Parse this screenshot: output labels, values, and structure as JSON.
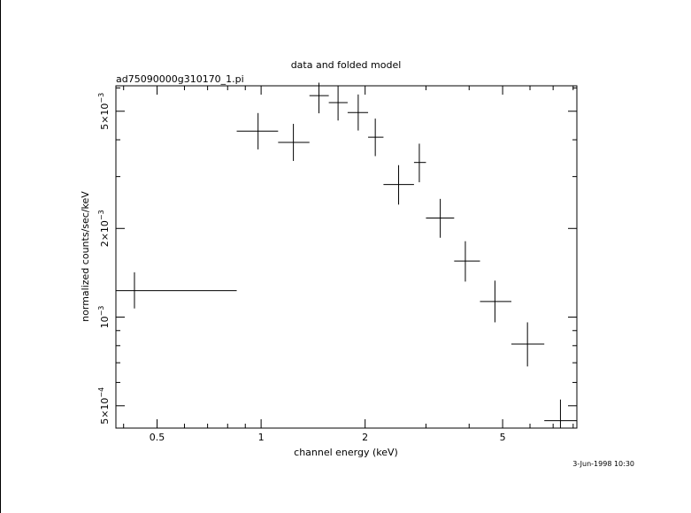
{
  "chart_data": {
    "type": "scatter",
    "title": "data and folded model",
    "subtitle": "ad75090000g310170_1.pi",
    "xlabel": "channel energy (keV)",
    "ylabel": "normalized counts/sec/keV",
    "x_scale": "log",
    "y_scale": "log",
    "xlim": [
      0.38,
      8.2
    ],
    "ylim": [
      0.00042,
      0.0061
    ],
    "grid": false,
    "x_ticks": [
      {
        "value": 0.5,
        "label": "0.5"
      },
      {
        "value": 1,
        "label": "1"
      },
      {
        "value": 2,
        "label": "2"
      },
      {
        "value": 5,
        "label": "5"
      }
    ],
    "y_ticks": [
      {
        "value": 0.0005,
        "mantissa": "5×10",
        "exp": "−4"
      },
      {
        "value": 0.001,
        "mantissa": "10",
        "exp": "−3"
      },
      {
        "value": 0.002,
        "mantissa": "2×10",
        "exp": "−3"
      },
      {
        "value": 0.005,
        "mantissa": "5×10",
        "exp": "−3"
      }
    ],
    "series": [
      {
        "marker": "cross-error-bars",
        "points": [
          {
            "x": 0.43,
            "xlo": 0.38,
            "xhi": 0.85,
            "y": 0.00123,
            "ylo": 0.00107,
            "yhi": 0.00142
          },
          {
            "x": 0.98,
            "xlo": 0.85,
            "xhi": 1.12,
            "y": 0.00428,
            "ylo": 0.00371,
            "yhi": 0.00493
          },
          {
            "x": 1.24,
            "xlo": 1.12,
            "xhi": 1.38,
            "y": 0.00392,
            "ylo": 0.00339,
            "yhi": 0.00453
          },
          {
            "x": 1.47,
            "xlo": 1.38,
            "xhi": 1.57,
            "y": 0.00565,
            "ylo": 0.00492,
            "yhi": 0.00625
          },
          {
            "x": 1.67,
            "xlo": 1.57,
            "xhi": 1.78,
            "y": 0.00535,
            "ylo": 0.00465,
            "yhi": 0.0061
          },
          {
            "x": 1.91,
            "xlo": 1.78,
            "xhi": 2.04,
            "y": 0.00495,
            "ylo": 0.0043,
            "yhi": 0.0057
          },
          {
            "x": 2.14,
            "xlo": 2.04,
            "xhi": 2.26,
            "y": 0.00408,
            "ylo": 0.00352,
            "yhi": 0.00472
          },
          {
            "x": 2.5,
            "xlo": 2.26,
            "xhi": 2.77,
            "y": 0.00282,
            "ylo": 0.00241,
            "yhi": 0.00328
          },
          {
            "x": 2.87,
            "xlo": 2.77,
            "xhi": 3.0,
            "y": 0.00335,
            "ylo": 0.00287,
            "yhi": 0.00388
          },
          {
            "x": 3.3,
            "xlo": 3.0,
            "xhi": 3.62,
            "y": 0.00217,
            "ylo": 0.00186,
            "yhi": 0.00252
          },
          {
            "x": 3.9,
            "xlo": 3.62,
            "xhi": 4.3,
            "y": 0.00155,
            "ylo": 0.00132,
            "yhi": 0.00181
          },
          {
            "x": 4.75,
            "xlo": 4.3,
            "xhi": 5.3,
            "y": 0.00113,
            "ylo": 0.00096,
            "yhi": 0.00133
          },
          {
            "x": 5.9,
            "xlo": 5.3,
            "xhi": 6.6,
            "y": 0.00081,
            "ylo": 0.00068,
            "yhi": 0.00096
          },
          {
            "x": 7.35,
            "xlo": 6.6,
            "xhi": 8.2,
            "y": 0.000445,
            "ylo": 0.00042,
            "yhi": 0.000525
          }
        ]
      }
    ]
  },
  "timestamp": "3-Jun-1998 10:30"
}
